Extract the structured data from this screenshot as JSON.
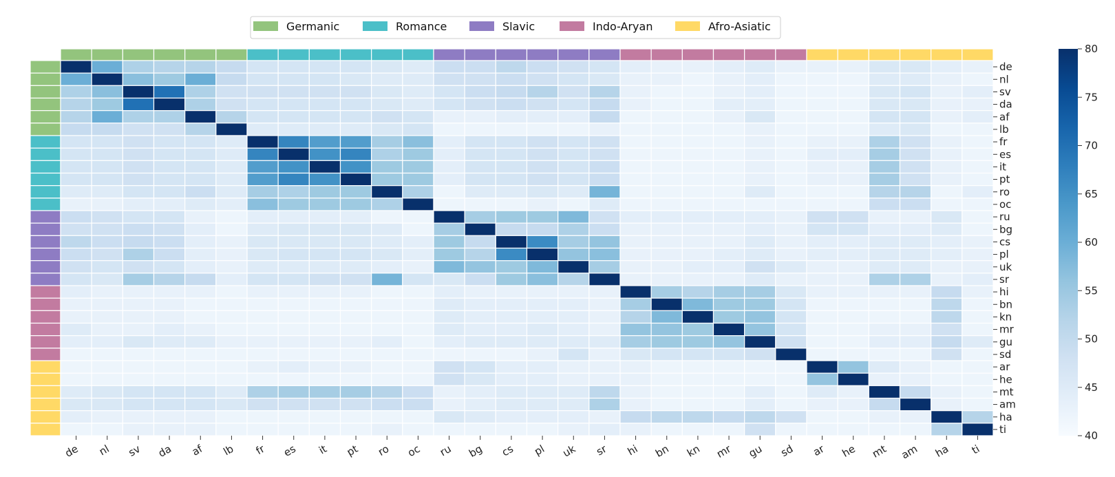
{
  "chart_data": {
    "type": "heatmap",
    "languages": [
      "de",
      "nl",
      "sv",
      "da",
      "af",
      "lb",
      "fr",
      "es",
      "it",
      "pt",
      "ro",
      "oc",
      "ru",
      "bg",
      "cs",
      "pl",
      "uk",
      "sr",
      "hi",
      "bn",
      "kn",
      "mr",
      "gu",
      "sd",
      "ar",
      "he",
      "mt",
      "am",
      "ha",
      "ti"
    ],
    "families": [
      {
        "name": "Germanic",
        "color": "#93c47d",
        "members": [
          "de",
          "nl",
          "sv",
          "da",
          "af",
          "lb"
        ]
      },
      {
        "name": "Romance",
        "color": "#4bbfc8",
        "members": [
          "fr",
          "es",
          "it",
          "pt",
          "ro",
          "oc"
        ]
      },
      {
        "name": "Slavic",
        "color": "#8e7cc3",
        "members": [
          "ru",
          "bg",
          "cs",
          "pl",
          "uk",
          "sr"
        ]
      },
      {
        "name": "Indo-Aryan",
        "color": "#c27ba0",
        "members": [
          "hi",
          "bn",
          "kn",
          "mr",
          "gu",
          "sd"
        ]
      },
      {
        "name": "Afro-Asiatic",
        "color": "#ffd966",
        "members": [
          "ar",
          "he",
          "mt",
          "am",
          "ha",
          "ti"
        ]
      }
    ],
    "colorbar": {
      "min": 40,
      "max": 80,
      "ticks": [
        40,
        45,
        50,
        55,
        60,
        65,
        70,
        75,
        80
      ]
    },
    "matrix": [
      [
        80,
        60,
        53,
        52,
        52,
        50,
        47,
        47,
        47,
        47,
        46,
        45,
        49,
        49,
        51,
        49,
        48,
        47,
        44,
        43,
        43,
        44,
        45,
        43,
        43,
        43,
        46,
        46,
        44,
        43
      ],
      [
        60,
        80,
        57,
        55,
        60,
        50,
        47,
        47,
        47,
        46,
        45,
        45,
        48,
        48,
        49,
        48,
        47,
        46,
        43,
        43,
        42,
        43,
        44,
        42,
        42,
        42,
        45,
        45,
        43,
        42
      ],
      [
        53,
        57,
        80,
        70,
        53,
        48,
        48,
        48,
        48,
        48,
        46,
        45,
        47,
        49,
        50,
        52,
        48,
        52,
        43,
        42,
        42,
        43,
        44,
        42,
        42,
        42,
        46,
        47,
        43,
        44
      ],
      [
        52,
        55,
        70,
        80,
        53,
        48,
        47,
        47,
        47,
        47,
        46,
        45,
        47,
        48,
        49,
        48,
        47,
        50,
        43,
        42,
        42,
        44,
        44,
        42,
        42,
        42,
        46,
        46,
        43,
        43
      ],
      [
        52,
        60,
        53,
        53,
        80,
        52,
        47,
        47,
        47,
        47,
        48,
        47,
        43,
        43,
        44,
        44,
        44,
        50,
        42,
        42,
        42,
        43,
        46,
        42,
        42,
        42,
        47,
        47,
        43,
        44
      ],
      [
        50,
        50,
        48,
        48,
        52,
        80,
        45,
        45,
        45,
        45,
        46,
        47,
        42,
        42,
        42,
        42,
        42,
        43,
        42,
        42,
        42,
        42,
        43,
        42,
        42,
        42,
        45,
        46,
        42,
        42
      ],
      [
        47,
        47,
        48,
        47,
        47,
        45,
        80,
        67,
        63,
        63,
        54,
        57,
        44,
        47,
        47,
        48,
        47,
        48,
        42,
        42,
        42,
        42,
        43,
        42,
        43,
        43,
        53,
        48,
        43,
        42
      ],
      [
        47,
        47,
        48,
        47,
        47,
        45,
        67,
        80,
        65,
        67,
        53,
        55,
        44,
        47,
        47,
        48,
        47,
        48,
        42,
        42,
        42,
        42,
        43,
        42,
        44,
        44,
        54,
        48,
        43,
        42
      ],
      [
        47,
        47,
        48,
        47,
        47,
        45,
        63,
        65,
        80,
        65,
        55,
        55,
        44,
        47,
        47,
        48,
        47,
        49,
        42,
        42,
        42,
        42,
        43,
        42,
        43,
        43,
        54,
        48,
        43,
        42
      ],
      [
        47,
        47,
        48,
        47,
        47,
        45,
        63,
        67,
        65,
        80,
        55,
        55,
        44,
        47,
        47,
        48,
        47,
        49,
        42,
        42,
        42,
        42,
        43,
        42,
        43,
        43,
        54,
        48,
        43,
        42
      ],
      [
        45,
        45,
        47,
        47,
        49,
        45,
        54,
        53,
        55,
        55,
        80,
        53,
        42,
        45,
        45,
        46,
        45,
        59,
        42,
        42,
        42,
        42,
        45,
        42,
        42,
        42,
        52,
        52,
        42,
        44
      ],
      [
        43,
        43,
        44,
        44,
        45,
        44,
        57,
        55,
        55,
        55,
        53,
        80,
        42,
        42,
        42,
        43,
        42,
        45,
        42,
        42,
        42,
        42,
        42,
        42,
        42,
        42,
        49,
        49,
        42,
        42
      ],
      [
        49,
        48,
        47,
        47,
        43,
        42,
        44,
        44,
        44,
        44,
        42,
        42,
        80,
        54,
        55,
        55,
        58,
        48,
        44,
        44,
        44,
        44,
        44,
        43,
        48,
        48,
        43,
        43,
        46,
        42
      ],
      [
        48,
        48,
        49,
        48,
        44,
        42,
        45,
        46,
        46,
        46,
        45,
        42,
        54,
        80,
        50,
        50,
        53,
        49,
        43,
        43,
        43,
        43,
        44,
        43,
        47,
        47,
        44,
        44,
        45,
        42
      ],
      [
        51,
        49,
        50,
        49,
        44,
        43,
        46,
        46,
        46,
        46,
        45,
        44,
        55,
        50,
        80,
        66,
        54,
        56,
        43,
        43,
        43,
        43,
        45,
        43,
        44,
        44,
        45,
        45,
        44,
        43
      ],
      [
        49,
        48,
        53,
        49,
        44,
        43,
        46,
        47,
        47,
        47,
        46,
        44,
        55,
        52,
        66,
        80,
        56,
        57,
        43,
        43,
        43,
        44,
        45,
        43,
        44,
        44,
        45,
        45,
        44,
        43
      ],
      [
        48,
        47,
        48,
        47,
        44,
        43,
        45,
        45,
        45,
        45,
        44,
        43,
        58,
        56,
        55,
        58,
        80,
        54,
        43,
        43,
        44,
        44,
        48,
        45,
        43,
        43,
        45,
        45,
        43,
        43
      ],
      [
        47,
        46,
        54,
        52,
        50,
        44,
        47,
        47,
        48,
        48,
        59,
        47,
        46,
        49,
        55,
        57,
        52,
        80,
        43,
        43,
        43,
        43,
        45,
        43,
        43,
        43,
        53,
        53,
        43,
        44
      ],
      [
        44,
        43,
        43,
        43,
        43,
        42,
        43,
        43,
        43,
        43,
        42,
        42,
        44,
        43,
        43,
        43,
        43,
        43,
        80,
        54,
        52,
        54,
        54,
        46,
        43,
        43,
        43,
        43,
        50,
        43
      ],
      [
        43,
        43,
        43,
        43,
        42,
        42,
        42,
        42,
        42,
        42,
        42,
        42,
        45,
        44,
        44,
        44,
        44,
        43,
        54,
        80,
        58,
        55,
        55,
        47,
        42,
        42,
        42,
        42,
        51,
        42
      ],
      [
        43,
        43,
        43,
        43,
        42,
        42,
        42,
        42,
        42,
        42,
        42,
        42,
        45,
        44,
        44,
        44,
        44,
        43,
        52,
        58,
        80,
        55,
        56,
        47,
        42,
        42,
        42,
        42,
        51,
        42
      ],
      [
        45,
        43,
        43,
        44,
        43,
        42,
        42,
        42,
        42,
        42,
        42,
        42,
        45,
        44,
        44,
        45,
        44,
        43,
        56,
        56,
        55,
        80,
        56,
        47,
        42,
        42,
        43,
        43,
        48,
        42
      ],
      [
        44,
        44,
        46,
        45,
        45,
        43,
        43,
        43,
        43,
        43,
        44,
        42,
        44,
        45,
        45,
        45,
        45,
        45,
        54,
        55,
        55,
        56,
        80,
        48,
        42,
        42,
        44,
        44,
        50,
        45
      ],
      [
        42,
        42,
        42,
        42,
        42,
        42,
        42,
        42,
        42,
        42,
        42,
        42,
        42,
        42,
        42,
        43,
        47,
        43,
        46,
        47,
        47,
        47,
        48,
        80,
        42,
        42,
        42,
        42,
        48,
        42
      ],
      [
        42,
        42,
        42,
        42,
        42,
        42,
        43,
        44,
        43,
        43,
        42,
        42,
        48,
        47,
        44,
        44,
        43,
        43,
        43,
        42,
        42,
        42,
        42,
        42,
        80,
        56,
        45,
        43,
        42,
        42
      ],
      [
        42,
        42,
        42,
        42,
        42,
        42,
        42,
        42,
        42,
        42,
        42,
        42,
        48,
        46,
        44,
        44,
        43,
        43,
        43,
        42,
        42,
        42,
        42,
        42,
        56,
        80,
        43,
        43,
        42,
        42
      ],
      [
        45,
        46,
        47,
        47,
        47,
        45,
        53,
        54,
        54,
        54,
        52,
        49,
        43,
        44,
        45,
        45,
        45,
        51,
        43,
        42,
        42,
        42,
        44,
        42,
        45,
        43,
        80,
        50,
        43,
        42
      ],
      [
        46,
        46,
        47,
        47,
        47,
        46,
        48,
        48,
        48,
        48,
        49,
        49,
        43,
        44,
        45,
        45,
        45,
        53,
        43,
        42,
        42,
        42,
        44,
        42,
        43,
        43,
        50,
        80,
        43,
        42
      ],
      [
        44,
        43,
        43,
        43,
        43,
        42,
        42,
        42,
        42,
        42,
        42,
        42,
        46,
        45,
        44,
        44,
        44,
        43,
        50,
        51,
        51,
        50,
        51,
        48,
        42,
        42,
        43,
        43,
        80,
        52
      ],
      [
        42,
        42,
        43,
        43,
        43,
        42,
        42,
        42,
        42,
        42,
        43,
        42,
        42,
        42,
        42,
        42,
        43,
        44,
        43,
        42,
        42,
        42,
        48,
        42,
        42,
        42,
        42,
        42,
        52,
        80
      ]
    ]
  }
}
